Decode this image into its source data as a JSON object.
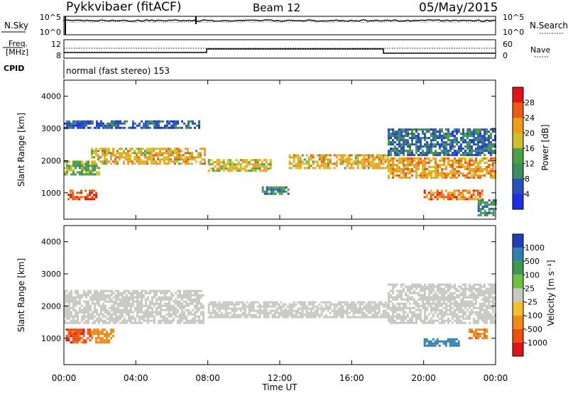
{
  "header": {
    "radar": "Pykkvibaer (fitACF)",
    "beam": "Beam 12",
    "date": "05/May/2015"
  },
  "panels": {
    "nsky": {
      "left_label": "N.Sky",
      "ticks_left": [
        "10^5",
        "10^0"
      ],
      "ticks_right": [
        "10^5",
        "10^0"
      ],
      "right_label": "N.Search"
    },
    "freq": {
      "left_label_1": "Freq.",
      "left_label_2": "[MHz]",
      "ticks_left": [
        "12",
        "8"
      ],
      "ticks_right": [
        "60",
        "0"
      ],
      "right_label": "Nave"
    },
    "cpid": {
      "left_label": "CPID",
      "value": "normal (fast stereo) 153"
    }
  },
  "colors": {
    "ground_scatter": "#c8c8c3",
    "power_scale": [
      "#1a30e8",
      "#2a50b8",
      "#3c8c5c",
      "#4ca048",
      "#cdbf2e",
      "#f29a1a",
      "#ee5a14",
      "#e01418"
    ],
    "velocity_scale": [
      "#1f3fb8",
      "#2f7fb4",
      "#3c9a50",
      "#70c040",
      "#c8c8c3",
      "#f0c030",
      "#f08a18",
      "#ee5010",
      "#e01418"
    ]
  },
  "chart_data": [
    {
      "type": "heatmap",
      "name": "power",
      "ylabel": "Slant Range [km]",
      "yticks": [
        "4000",
        "3000",
        "2000",
        "1000"
      ],
      "ylim": [
        180,
        4500
      ],
      "xlim_hours": [
        0,
        24
      ],
      "colorbar_label": "Power [dB]",
      "colorbar_ticks": [
        "28",
        "24",
        "20",
        "16",
        "12",
        "8",
        "4"
      ],
      "colorbar_range": [
        0,
        32
      ],
      "layers": [
        {
          "hours": [
            0,
            7.5
          ],
          "ranges": [
            3000,
            3250
          ],
          "value": 6
        },
        {
          "hours": [
            0,
            2
          ],
          "ranges": [
            1600,
            2000
          ],
          "value": 14
        },
        {
          "hours": [
            0.2,
            1.8
          ],
          "ranges": [
            800,
            1100
          ],
          "value": 26
        },
        {
          "hours": [
            1.5,
            7.8
          ],
          "ranges": [
            1900,
            2400
          ],
          "value": 20
        },
        {
          "hours": [
            8,
            11.5
          ],
          "ranges": [
            1700,
            2050
          ],
          "value": 18
        },
        {
          "hours": [
            11,
            12.5
          ],
          "ranges": [
            1000,
            1200
          ],
          "value": 10
        },
        {
          "hours": [
            12.5,
            18
          ],
          "ranges": [
            1750,
            2200
          ],
          "value": 20
        },
        {
          "hours": [
            18,
            24
          ],
          "ranges": [
            1500,
            2100
          ],
          "value": 22
        },
        {
          "hours": [
            18,
            24
          ],
          "ranges": [
            2200,
            3000
          ],
          "value": 8
        },
        {
          "hours": [
            20,
            23.2
          ],
          "ranges": [
            800,
            1100
          ],
          "value": 24
        },
        {
          "hours": [
            23,
            24
          ],
          "ranges": [
            300,
            800
          ],
          "value": 10
        }
      ]
    },
    {
      "type": "heatmap",
      "name": "velocity",
      "ylabel": "Slant Range [km]",
      "yticks": [
        "4000",
        "3000",
        "2000",
        "1000"
      ],
      "ylim": [
        180,
        4500
      ],
      "xlabel": "Time UT",
      "xticks": [
        "00:00",
        "04:00",
        "08:00",
        "12:00",
        "16:00",
        "20:00",
        "00:00"
      ],
      "xlim_hours": [
        0,
        24
      ],
      "colorbar_label": "Velocity [m s⁻¹]",
      "colorbar_ticks": [
        "1000",
        "500",
        "100",
        "25",
        "-25",
        "-100",
        "-500",
        "-1000"
      ],
      "layers": [
        {
          "hours": [
            0,
            7.8
          ],
          "ranges": [
            1500,
            2500
          ],
          "value": 0
        },
        {
          "hours": [
            8,
            18
          ],
          "ranges": [
            1650,
            2150
          ],
          "value": 0
        },
        {
          "hours": [
            18,
            24
          ],
          "ranges": [
            1500,
            2700
          ],
          "value": 0
        },
        {
          "hours": [
            0.1,
            1.5
          ],
          "ranges": [
            900,
            1300
          ],
          "value": -800
        },
        {
          "hours": [
            1.5,
            2.8
          ],
          "ranges": [
            900,
            1300
          ],
          "value": -300
        },
        {
          "hours": [
            20,
            22
          ],
          "ranges": [
            750,
            1000
          ],
          "value": 700
        },
        {
          "hours": [
            22.5,
            23.5
          ],
          "ranges": [
            1000,
            1300
          ],
          "value": -500
        }
      ]
    }
  ]
}
